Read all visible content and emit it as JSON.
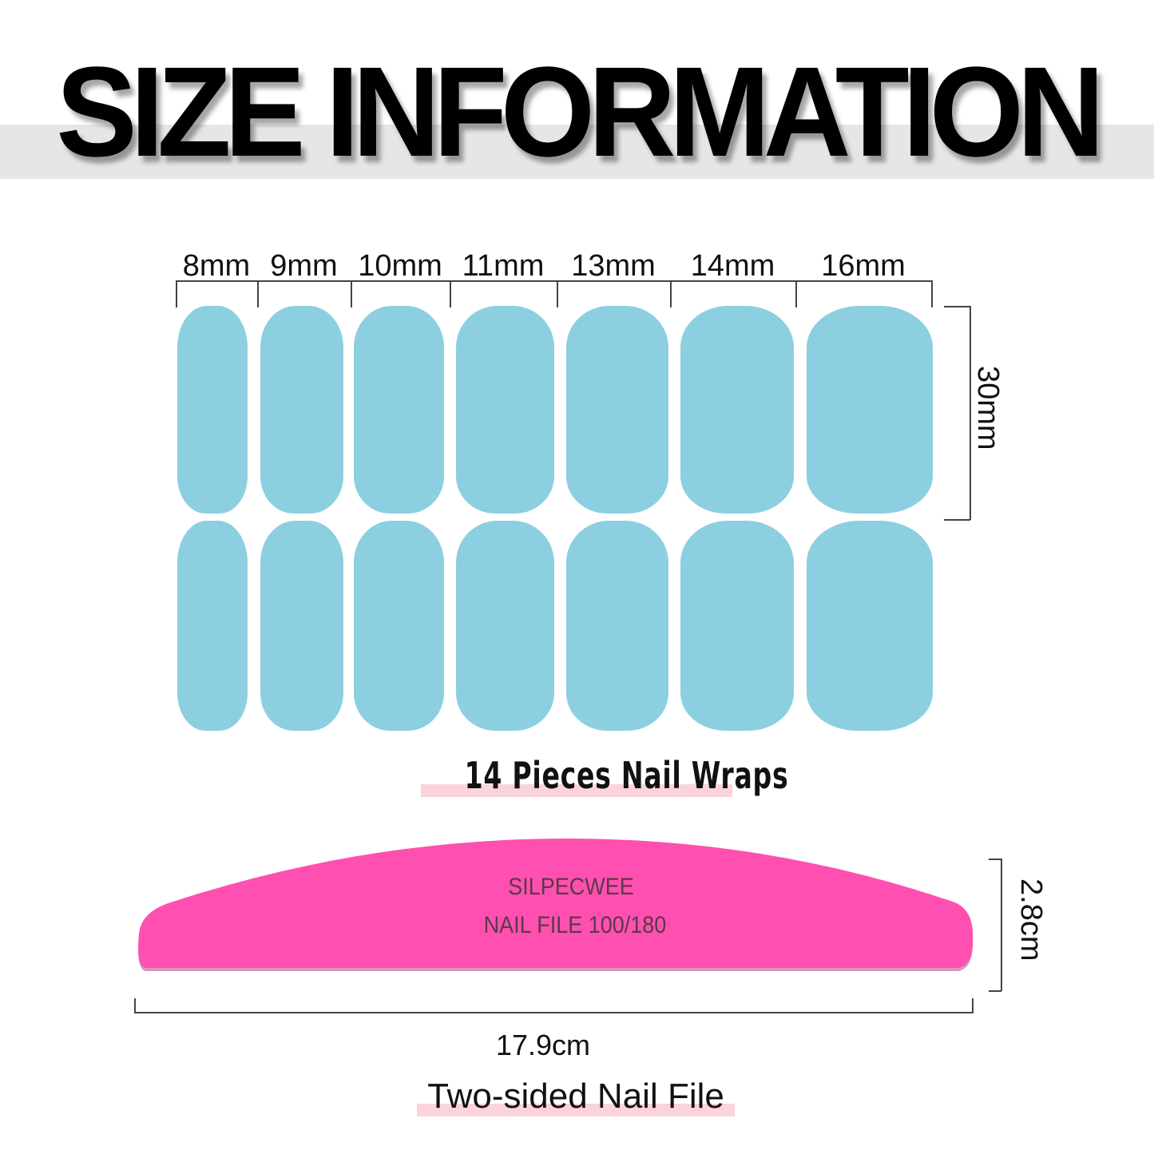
{
  "title": "SIZE INFORMATION",
  "nail_wraps": {
    "widths": [
      "8mm",
      "9mm",
      "10mm",
      "11mm",
      "13mm",
      "14mm",
      "16mm"
    ],
    "height": "30mm",
    "caption": "14 Pieces Nail Wraps",
    "color": "#8ccfe1",
    "rows": 2
  },
  "nail_file": {
    "brand": "SILPECWEE",
    "label": "NAIL FILE 100/180",
    "height": "2.8cm",
    "length": "17.9cm",
    "caption": "Two-sided Nail File",
    "color": "#ff4fb0"
  },
  "highlight_color": "#fbd3da"
}
